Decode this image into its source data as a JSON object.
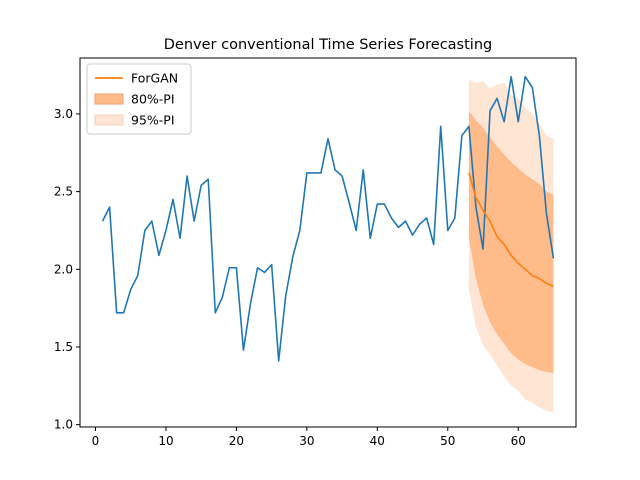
{
  "chart_data": {
    "type": "line",
    "title": "Denver conventional Time Series Forecasting",
    "xlabel": "",
    "ylabel": "",
    "xlim": [
      -2.2,
      68.2
    ],
    "ylim": [
      0.985,
      3.36
    ],
    "x_ticks": [
      0,
      10,
      20,
      30,
      40,
      50,
      60
    ],
    "y_ticks": [
      1.0,
      1.5,
      2.0,
      2.5,
      3.0
    ],
    "y_tick_labels": [
      "1.0",
      "1.5",
      "2.0",
      "2.5",
      "3.0"
    ],
    "grid": false,
    "legend_position": "top-left",
    "colors": {
      "actual": "#1f77b4",
      "forecast": "#ff7f0e",
      "pi80": "#ffbb8a",
      "pi95": "#ffe5d4"
    },
    "actual": {
      "x": [
        1,
        2,
        3,
        4,
        5,
        6,
        7,
        8,
        9,
        10,
        11,
        12,
        13,
        14,
        15,
        16,
        17,
        18,
        19,
        20,
        21,
        22,
        23,
        24,
        25,
        26,
        27,
        28,
        29,
        30,
        31,
        32,
        33,
        34,
        35,
        36,
        37,
        38,
        39,
        40,
        41,
        42,
        43,
        44,
        45,
        46,
        47,
        48,
        49,
        50,
        51,
        52,
        53,
        54,
        55,
        56,
        57,
        58,
        59,
        60,
        61,
        62,
        63,
        64,
        65
      ],
      "y": [
        2.31,
        2.4,
        1.72,
        1.72,
        1.87,
        1.96,
        2.25,
        2.31,
        2.09,
        2.25,
        2.45,
        2.2,
        2.6,
        2.31,
        2.54,
        2.58,
        1.72,
        1.82,
        2.01,
        2.01,
        1.48,
        1.78,
        2.01,
        1.98,
        2.03,
        1.41,
        1.83,
        2.08,
        2.25,
        2.62,
        2.62,
        2.62,
        2.84,
        2.64,
        2.6,
        2.43,
        2.25,
        2.64,
        2.2,
        2.42,
        2.42,
        2.33,
        2.27,
        2.31,
        2.22,
        2.29,
        2.33,
        2.16,
        2.92,
        2.25,
        2.33,
        2.86,
        2.92,
        2.4,
        2.13,
        3.02,
        3.1,
        2.95,
        3.24,
        2.95,
        3.24,
        3.17,
        2.86,
        2.36,
        2.07
      ]
    },
    "series": [
      {
        "name": "ForGAN",
        "x": [
          53,
          54,
          55,
          56,
          57,
          58,
          59,
          60,
          61,
          62,
          63,
          64,
          65
        ],
        "values": [
          2.62,
          2.46,
          2.38,
          2.31,
          2.21,
          2.16,
          2.09,
          2.04,
          2.0,
          1.96,
          1.94,
          1.91,
          1.89
        ]
      }
    ],
    "bands": [
      {
        "name": "95%-PI",
        "x": [
          53,
          54,
          55,
          56,
          57,
          58,
          59,
          60,
          61,
          62,
          63,
          64,
          65
        ],
        "lower": [
          1.87,
          1.63,
          1.51,
          1.45,
          1.38,
          1.31,
          1.25,
          1.22,
          1.16,
          1.14,
          1.11,
          1.09,
          1.08
        ],
        "upper": [
          3.22,
          3.2,
          3.21,
          3.16,
          3.19,
          3.2,
          3.12,
          3.1,
          3.04,
          3.0,
          2.94,
          2.86,
          2.84
        ]
      },
      {
        "name": "80%-PI",
        "x": [
          53,
          54,
          55,
          56,
          57,
          58,
          59,
          60,
          61,
          62,
          63,
          64,
          65
        ],
        "lower": [
          2.2,
          1.94,
          1.77,
          1.66,
          1.58,
          1.52,
          1.46,
          1.42,
          1.39,
          1.37,
          1.35,
          1.34,
          1.33
        ],
        "upper": [
          3.02,
          2.96,
          2.91,
          2.85,
          2.79,
          2.74,
          2.69,
          2.65,
          2.61,
          2.58,
          2.55,
          2.5,
          2.48
        ]
      }
    ],
    "legend": [
      {
        "label": "ForGAN",
        "kind": "line",
        "color": "#ff7f0e"
      },
      {
        "label": "80%-PI",
        "kind": "patch",
        "color": "#ffbb8a",
        "edge": "#f0a070"
      },
      {
        "label": "95%-PI",
        "kind": "patch",
        "color": "#ffe5d4",
        "edge": "#f5cfb5"
      }
    ]
  }
}
